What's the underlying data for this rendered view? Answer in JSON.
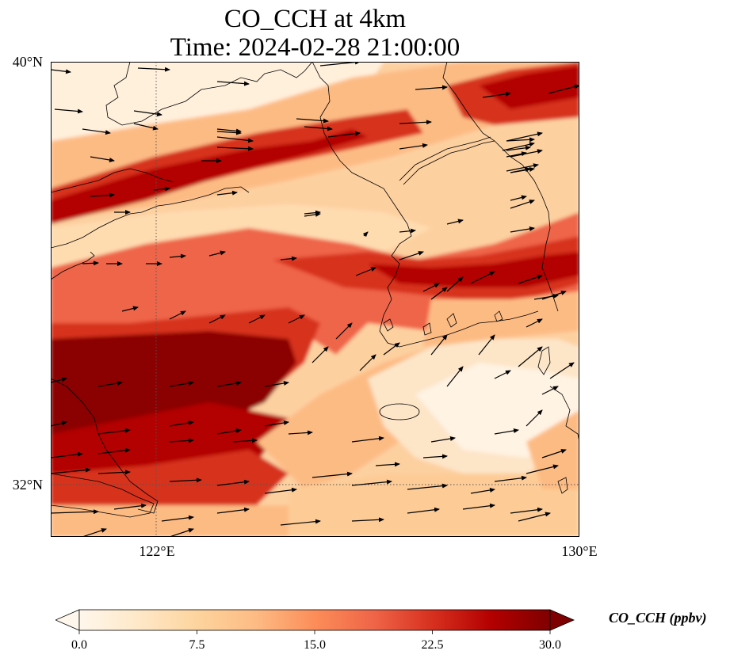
{
  "title": {
    "line1": "CO_CCH at 4km",
    "line2": "Time: 2024-02-28 21:00:00"
  },
  "map": {
    "lat_range": [
      31.0,
      40.0
    ],
    "lon_range": [
      120.0,
      130.0
    ],
    "lat_labels": [
      "40°N",
      "32°N"
    ],
    "lon_labels": [
      "122°E",
      "130°E"
    ],
    "gridlines": {
      "lat": 32,
      "lon": 122,
      "style": "dotted"
    },
    "features": [
      "coastlines",
      "wind-vectors",
      "filled-concentration-field"
    ]
  },
  "colorbar": {
    "label": "CO_CCH (ppbv)",
    "min": 0.0,
    "max": 30.0,
    "ticks": [
      "0.0",
      "7.5",
      "15.0",
      "22.5",
      "30.0"
    ],
    "extend": "both",
    "colormap": [
      "#fff7ec",
      "#fee8c8",
      "#fdd49e",
      "#fdbb84",
      "#fc8d59",
      "#ef6548",
      "#d7301f",
      "#b30000",
      "#7f0000"
    ]
  }
}
